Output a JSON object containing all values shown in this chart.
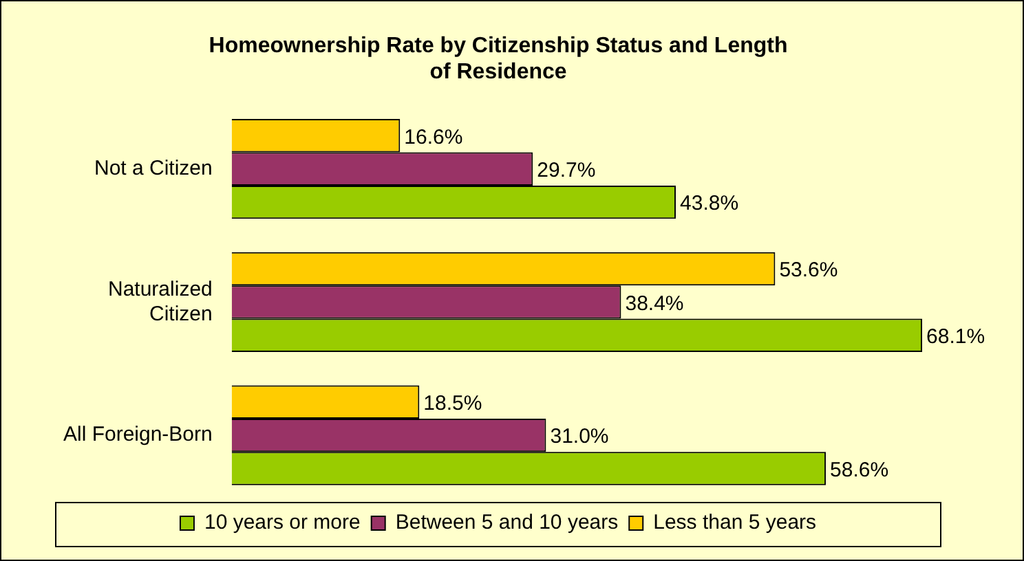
{
  "chart_data": {
    "type": "bar",
    "orientation": "horizontal",
    "title": "Homeownership Rate by Citizenship Status and Length of Residence",
    "categories": [
      "Not a Citizen",
      "Naturalized Citizen",
      "All Foreign-Born"
    ],
    "legend": "bottom",
    "series": [
      {
        "name": "10 years or more",
        "color": "#99cc00",
        "values": [
          43.8,
          68.1,
          58.6
        ],
        "value_labels": [
          "43.8%",
          "68.1%",
          "58.6%"
        ]
      },
      {
        "name": "Between 5 and 10 years",
        "color": "#993366",
        "values": [
          29.7,
          38.4,
          31.0
        ],
        "value_labels": [
          "29.7%",
          "38.4%",
          "31.0%"
        ]
      },
      {
        "name": "Less than 5 years",
        "color": "#ffcc00",
        "values": [
          16.6,
          53.6,
          18.5
        ],
        "value_labels": [
          "16.6%",
          "53.6%",
          "18.5%"
        ]
      }
    ]
  }
}
